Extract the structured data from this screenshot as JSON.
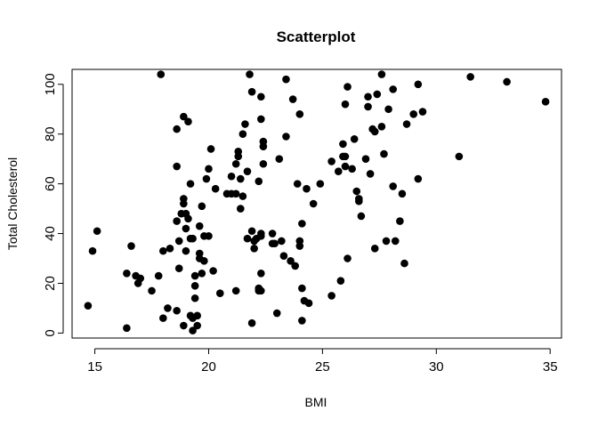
{
  "chart_data": {
    "type": "scatter",
    "title": "Scatterplot",
    "xlabel": "BMI",
    "ylabel": "Total Cholesterol",
    "xlim": [
      14,
      35.5
    ],
    "ylim": [
      -2,
      106
    ],
    "xticks": [
      15,
      20,
      25,
      30,
      35
    ],
    "yticks": [
      0,
      20,
      40,
      60,
      80,
      100
    ],
    "grid": false,
    "legend": "none",
    "marker_color": "#000000",
    "points": [
      [
        14.7,
        11
      ],
      [
        14.9,
        33
      ],
      [
        15.1,
        41
      ],
      [
        16.4,
        24
      ],
      [
        16.4,
        2
      ],
      [
        16.6,
        35
      ],
      [
        16.8,
        23
      ],
      [
        16.9,
        20
      ],
      [
        17.0,
        22
      ],
      [
        17.5,
        17
      ],
      [
        17.8,
        23
      ],
      [
        17.9,
        104
      ],
      [
        18.0,
        6
      ],
      [
        18.0,
        33
      ],
      [
        18.2,
        10
      ],
      [
        18.3,
        34
      ],
      [
        18.6,
        9
      ],
      [
        18.6,
        45
      ],
      [
        18.6,
        82
      ],
      [
        18.6,
        67
      ],
      [
        18.7,
        26
      ],
      [
        18.7,
        37
      ],
      [
        18.8,
        48
      ],
      [
        18.9,
        54
      ],
      [
        18.9,
        52
      ],
      [
        18.9,
        87
      ],
      [
        18.9,
        3
      ],
      [
        19.0,
        33
      ],
      [
        19.0,
        42
      ],
      [
        19.0,
        48
      ],
      [
        19.1,
        46
      ],
      [
        19.1,
        85
      ],
      [
        19.2,
        38
      ],
      [
        19.2,
        7
      ],
      [
        19.2,
        60
      ],
      [
        19.3,
        38
      ],
      [
        19.3,
        6
      ],
      [
        19.3,
        1
      ],
      [
        19.4,
        14
      ],
      [
        19.4,
        19
      ],
      [
        19.4,
        23
      ],
      [
        19.5,
        3
      ],
      [
        19.5,
        7
      ],
      [
        19.6,
        43
      ],
      [
        19.6,
        32
      ],
      [
        19.6,
        30
      ],
      [
        19.7,
        24
      ],
      [
        19.7,
        51
      ],
      [
        19.8,
        29
      ],
      [
        19.8,
        39
      ],
      [
        19.9,
        62
      ],
      [
        20.0,
        66
      ],
      [
        20.0,
        39
      ],
      [
        20.1,
        74
      ],
      [
        20.2,
        25
      ],
      [
        20.3,
        58
      ],
      [
        20.5,
        16
      ],
      [
        20.8,
        56
      ],
      [
        21.0,
        63
      ],
      [
        21.0,
        56
      ],
      [
        21.2,
        17
      ],
      [
        21.2,
        68
      ],
      [
        21.2,
        56
      ],
      [
        21.3,
        71
      ],
      [
        21.3,
        73
      ],
      [
        21.4,
        62
      ],
      [
        21.4,
        50
      ],
      [
        21.5,
        55
      ],
      [
        21.5,
        80
      ],
      [
        21.6,
        84
      ],
      [
        21.7,
        65
      ],
      [
        21.7,
        38
      ],
      [
        21.8,
        104
      ],
      [
        21.9,
        97
      ],
      [
        21.9,
        41
      ],
      [
        21.9,
        4
      ],
      [
        22.0,
        34
      ],
      [
        22.0,
        37
      ],
      [
        22.1,
        38
      ],
      [
        22.2,
        61
      ],
      [
        22.2,
        18
      ],
      [
        22.2,
        17
      ],
      [
        22.3,
        39
      ],
      [
        22.3,
        86
      ],
      [
        22.3,
        95
      ],
      [
        22.3,
        24
      ],
      [
        22.3,
        17
      ],
      [
        22.3,
        40
      ],
      [
        22.4,
        75
      ],
      [
        22.4,
        77
      ],
      [
        22.4,
        68
      ],
      [
        22.8,
        36
      ],
      [
        22.8,
        40
      ],
      [
        22.9,
        36
      ],
      [
        23.0,
        8
      ],
      [
        23.1,
        70
      ],
      [
        23.2,
        37
      ],
      [
        23.3,
        31
      ],
      [
        23.4,
        102
      ],
      [
        23.4,
        79
      ],
      [
        23.6,
        29
      ],
      [
        23.7,
        94
      ],
      [
        23.8,
        27
      ],
      [
        23.9,
        60
      ],
      [
        24.0,
        88
      ],
      [
        24.0,
        37
      ],
      [
        24.0,
        35
      ],
      [
        24.1,
        44
      ],
      [
        24.1,
        18
      ],
      [
        24.1,
        5
      ],
      [
        24.2,
        13
      ],
      [
        24.3,
        58
      ],
      [
        24.4,
        12
      ],
      [
        24.6,
        52
      ],
      [
        24.9,
        60
      ],
      [
        25.4,
        15
      ],
      [
        25.4,
        69
      ],
      [
        25.7,
        65
      ],
      [
        25.8,
        21
      ],
      [
        25.9,
        71
      ],
      [
        25.9,
        76
      ],
      [
        26.0,
        71
      ],
      [
        26.0,
        92
      ],
      [
        26.0,
        67
      ],
      [
        26.1,
        99
      ],
      [
        26.1,
        30
      ],
      [
        26.3,
        66
      ],
      [
        26.4,
        78
      ],
      [
        26.5,
        57
      ],
      [
        26.6,
        54
      ],
      [
        26.6,
        53
      ],
      [
        26.7,
        47
      ],
      [
        26.9,
        70
      ],
      [
        27.0,
        95
      ],
      [
        27.0,
        91
      ],
      [
        27.1,
        64
      ],
      [
        27.2,
        82
      ],
      [
        27.3,
        81
      ],
      [
        27.3,
        34
      ],
      [
        27.4,
        96
      ],
      [
        27.6,
        104
      ],
      [
        27.6,
        83
      ],
      [
        27.7,
        72
      ],
      [
        27.8,
        37
      ],
      [
        27.9,
        90
      ],
      [
        28.1,
        98
      ],
      [
        28.1,
        59
      ],
      [
        28.2,
        37
      ],
      [
        28.4,
        45
      ],
      [
        28.5,
        56
      ],
      [
        28.6,
        28
      ],
      [
        28.7,
        84
      ],
      [
        29.0,
        88
      ],
      [
        29.2,
        100
      ],
      [
        29.2,
        62
      ],
      [
        29.4,
        89
      ],
      [
        31.0,
        71
      ],
      [
        31.5,
        103
      ],
      [
        33.1,
        101
      ],
      [
        34.8,
        93
      ]
    ]
  }
}
